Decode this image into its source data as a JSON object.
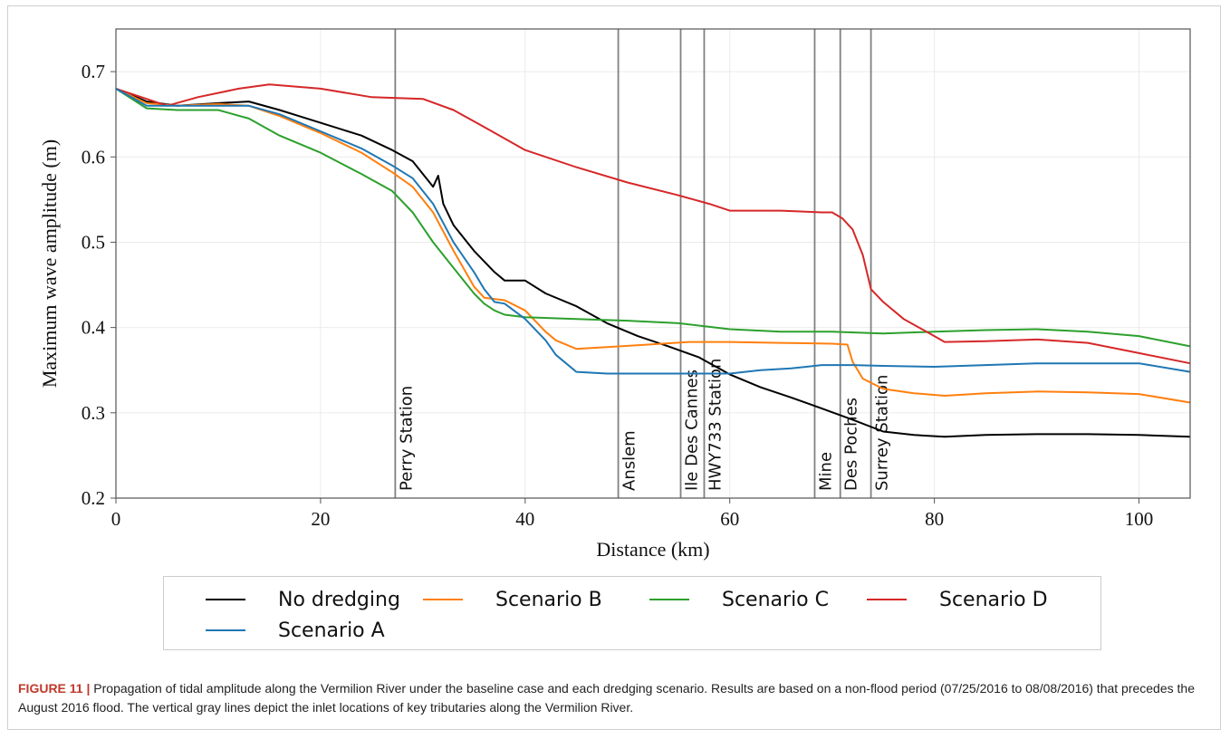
{
  "chart_data": {
    "type": "line",
    "xlabel": "Distance (km)",
    "ylabel": "Maximum wave amplitude (m)",
    "xlim": [
      0,
      105
    ],
    "ylim": [
      0.2,
      0.75
    ],
    "xticks": [
      0,
      20,
      40,
      60,
      80,
      100
    ],
    "yticks": [
      0.2,
      0.3,
      0.4,
      0.5,
      0.6,
      0.7
    ],
    "grid": true,
    "legend_position": "bottom",
    "tributaries": [
      {
        "name": "Perry Station",
        "x": 27.3
      },
      {
        "name": "Anslem",
        "x": 49.1
      },
      {
        "name": "Ile Des Cannes",
        "x": 55.2
      },
      {
        "name": "HWY733 Station",
        "x": 57.5
      },
      {
        "name": "Mine",
        "x": 68.3
      },
      {
        "name": "Des Poches",
        "x": 70.8
      },
      {
        "name": "Surrey Station",
        "x": 73.8
      }
    ],
    "series": [
      {
        "name": "No dredging",
        "color": "#000000",
        "x": [
          0,
          3,
          6,
          10,
          13,
          16,
          20,
          24,
          27,
          29,
          31,
          31.5,
          32,
          33,
          35,
          37,
          38,
          40,
          42,
          45,
          48,
          51,
          54,
          57,
          60,
          63,
          66,
          69,
          72,
          75,
          78,
          81,
          85,
          90,
          95,
          100,
          105
        ],
        "y": [
          0.68,
          0.665,
          0.66,
          0.663,
          0.665,
          0.655,
          0.64,
          0.625,
          0.608,
          0.595,
          0.565,
          0.578,
          0.545,
          0.52,
          0.49,
          0.465,
          0.455,
          0.455,
          0.44,
          0.425,
          0.405,
          0.39,
          0.378,
          0.365,
          0.345,
          0.33,
          0.318,
          0.305,
          0.292,
          0.278,
          0.274,
          0.272,
          0.274,
          0.275,
          0.275,
          0.274,
          0.272
        ]
      },
      {
        "name": "Scenario B",
        "color": "#ff7f0e",
        "x": [
          0,
          3,
          6,
          10,
          13,
          16,
          20,
          24,
          27,
          29,
          31,
          33,
          35,
          36,
          38,
          40,
          42,
          43,
          45,
          48,
          52,
          56,
          60,
          65,
          70,
          71.5,
          72,
          73,
          75,
          78,
          81,
          85,
          90,
          95,
          100,
          105
        ],
        "y": [
          0.68,
          0.663,
          0.66,
          0.662,
          0.66,
          0.648,
          0.628,
          0.605,
          0.582,
          0.565,
          0.535,
          0.49,
          0.448,
          0.435,
          0.432,
          0.42,
          0.395,
          0.385,
          0.375,
          0.377,
          0.38,
          0.383,
          0.383,
          0.382,
          0.381,
          0.38,
          0.36,
          0.34,
          0.328,
          0.323,
          0.32,
          0.323,
          0.325,
          0.324,
          0.322,
          0.312
        ]
      },
      {
        "name": "Scenario C",
        "color": "#2ca02c",
        "x": [
          0,
          3,
          6,
          10,
          13,
          16,
          20,
          24,
          27,
          29,
          31,
          33,
          35,
          36,
          37,
          38,
          40,
          45,
          50,
          55,
          60,
          65,
          70,
          75,
          80,
          85,
          90,
          95,
          100,
          105
        ],
        "y": [
          0.68,
          0.657,
          0.655,
          0.655,
          0.645,
          0.625,
          0.605,
          0.58,
          0.56,
          0.535,
          0.5,
          0.47,
          0.44,
          0.428,
          0.42,
          0.415,
          0.412,
          0.41,
          0.408,
          0.405,
          0.398,
          0.395,
          0.395,
          0.393,
          0.395,
          0.397,
          0.398,
          0.395,
          0.39,
          0.378
        ]
      },
      {
        "name": "Scenario D",
        "color": "#d62728",
        "x": [
          0,
          3,
          5,
          8,
          12,
          15,
          20,
          25,
          30,
          33,
          36,
          40,
          45,
          50,
          55,
          58,
          60,
          65,
          69,
          70,
          71,
          72,
          73,
          73.8,
          75,
          77,
          80,
          81,
          85,
          90,
          95,
          100,
          105
        ],
        "y": [
          0.68,
          0.668,
          0.66,
          0.67,
          0.68,
          0.685,
          0.68,
          0.67,
          0.668,
          0.655,
          0.635,
          0.608,
          0.588,
          0.57,
          0.555,
          0.545,
          0.537,
          0.537,
          0.535,
          0.535,
          0.528,
          0.515,
          0.485,
          0.445,
          0.43,
          0.41,
          0.39,
          0.383,
          0.384,
          0.386,
          0.382,
          0.37,
          0.358
        ]
      },
      {
        "name": "Scenario A",
        "color": "#1f77b4",
        "x": [
          0,
          3,
          6,
          10,
          13,
          16,
          20,
          24,
          27,
          29,
          31,
          33,
          35,
          36,
          37,
          38,
          40,
          42,
          43,
          45,
          48,
          52,
          56,
          60,
          63,
          66,
          69,
          72,
          75,
          80,
          85,
          90,
          95,
          100,
          105
        ],
        "y": [
          0.68,
          0.66,
          0.66,
          0.66,
          0.66,
          0.65,
          0.63,
          0.61,
          0.59,
          0.575,
          0.545,
          0.5,
          0.465,
          0.445,
          0.43,
          0.428,
          0.41,
          0.385,
          0.368,
          0.348,
          0.346,
          0.346,
          0.346,
          0.346,
          0.35,
          0.352,
          0.356,
          0.356,
          0.355,
          0.354,
          0.356,
          0.358,
          0.358,
          0.358,
          0.348
        ]
      }
    ]
  },
  "legend": {
    "items": [
      {
        "label": "No dredging",
        "color": "#000000"
      },
      {
        "label": "Scenario B",
        "color": "#ff7f0e"
      },
      {
        "label": "Scenario C",
        "color": "#2ca02c"
      },
      {
        "label": "Scenario D",
        "color": "#d62728"
      },
      {
        "label": "Scenario A",
        "color": "#1f77b4"
      }
    ]
  },
  "caption": {
    "label": "FIGURE 11 |",
    "text": "Propagation of tidal amplitude along the Vermilion River under the baseline case and each dredging scenario. Results are based on a non-flood period (07/25/2016 to 08/08/2016) that precedes the August 2016 flood. The vertical gray lines depict the inlet locations of key tributaries along the Vermilion River."
  }
}
